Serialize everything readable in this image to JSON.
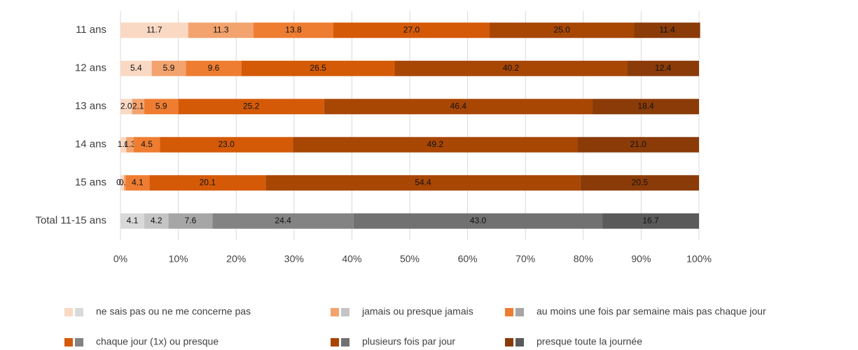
{
  "chart_data": {
    "type": "stacked_bar_horizontal",
    "categories": [
      "11 ans",
      "12 ans",
      "13 ans",
      "14 ans",
      "15 ans",
      "Total 11-15 ans"
    ],
    "series": [
      {
        "name": "ne sais pas ou ne me concerne pas",
        "colors": [
          "#fad9c4",
          "#fad9c4",
          "#fad9c4",
          "#fad9c4",
          "#fad9c4",
          "#d9d9d9"
        ],
        "values": [
          11.7,
          5.4,
          2.0,
          1.0,
          0.6,
          4.1
        ],
        "value_labels": [
          "11.7",
          "5.4",
          "2.0",
          "1.0",
          "0.6",
          "4.1"
        ]
      },
      {
        "name": "jamais ou presque jamais",
        "colors": [
          "#f2a36e",
          "#f2a36e",
          "#f2a36e",
          "#f2a36e",
          "#f2a36e",
          "#c4c4c4"
        ],
        "values": [
          11.3,
          5.9,
          2.1,
          1.3,
          0.3,
          4.2
        ],
        "value_labels": [
          "11.3",
          "5.9",
          "2.1",
          "1.3",
          "0.3",
          "4.2"
        ]
      },
      {
        "name": "au moins une fois par semaine mais pas chaque jour",
        "colors": [
          "#ee7d31",
          "#ee7d31",
          "#ee7d31",
          "#ee7d31",
          "#ee7d31",
          "#a6a6a6"
        ],
        "values": [
          13.8,
          9.6,
          5.9,
          4.5,
          4.1,
          7.6
        ],
        "value_labels": [
          "13.8",
          "9.6",
          "5.9",
          "4.5",
          "4.1",
          "7.6"
        ]
      },
      {
        "name": "chaque jour (1x) ou presque",
        "colors": [
          "#d45a08",
          "#d45a08",
          "#d45a08",
          "#d45a08",
          "#d45a08",
          "#838383"
        ],
        "values": [
          27.0,
          26.5,
          25.2,
          23.0,
          20.1,
          24.4
        ],
        "value_labels": [
          "27.0",
          "26.5",
          "25.2",
          "23.0",
          "20.1",
          "24.4"
        ]
      },
      {
        "name": "plusieurs fois par jour",
        "colors": [
          "#a84604",
          "#a84604",
          "#a84604",
          "#a84604",
          "#a84604",
          "#717171"
        ],
        "values": [
          25.0,
          40.2,
          46.4,
          49.2,
          54.4,
          43.0
        ],
        "value_labels": [
          "25.0",
          "40.2",
          "46.4",
          "49.2",
          "54.4",
          "43.0"
        ]
      },
      {
        "name": "presque toute la journée",
        "colors": [
          "#8a3b08",
          "#8a3b08",
          "#8a3b08",
          "#8a3b08",
          "#8a3b08",
          "#5a5a5a"
        ],
        "values": [
          11.4,
          12.4,
          18.4,
          21.0,
          20.5,
          16.7
        ],
        "value_labels": [
          "11.4",
          "12.4",
          "18.4",
          "21.0",
          "20.5",
          "16.7"
        ]
      }
    ],
    "xlim": [
      0,
      100
    ],
    "xticks": [
      {
        "value": 0,
        "label": "0%"
      },
      {
        "value": 10,
        "label": "10%"
      },
      {
        "value": 20,
        "label": "20%"
      },
      {
        "value": 30,
        "label": "30%"
      },
      {
        "value": 40,
        "label": "40%"
      },
      {
        "value": 50,
        "label": "50%"
      },
      {
        "value": 60,
        "label": "60%"
      },
      {
        "value": 70,
        "label": "70%"
      },
      {
        "value": 80,
        "label": "80%"
      },
      {
        "value": 90,
        "label": "90%"
      },
      {
        "value": 100,
        "label": "100%"
      }
    ],
    "grid": true,
    "legend": "bottom"
  }
}
